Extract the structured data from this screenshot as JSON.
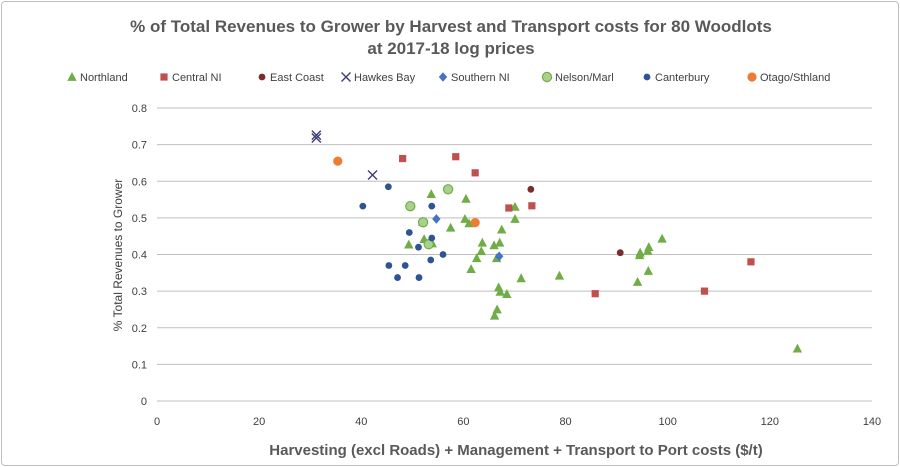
{
  "chart_data": {
    "type": "scatter",
    "title": "% of Total Revenues to Grower by Harvest and Transport costs for 80 Woodlots",
    "subtitle": "at 2017-18 log prices",
    "xlabel": "Harvesting (excl Roads) + Management + Transport to Port costs ($/t)",
    "ylabel": "% Total Revenues to Grower",
    "xlim": [
      0,
      140
    ],
    "ylim": [
      0,
      0.8
    ],
    "xticks": [
      "0",
      "20",
      "40",
      "60",
      "80",
      "100",
      "120",
      "140"
    ],
    "yticks": [
      "0",
      "0.1",
      "0.2",
      "0.3",
      "0.4",
      "0.5",
      "0.6",
      "0.7",
      "0.8"
    ],
    "grid": "horizontal",
    "legend_position": "top",
    "series": [
      {
        "name": "Northland",
        "marker": "triangle",
        "color": "#70ad47",
        "points": [
          [
            53.7,
            0.565
          ],
          [
            60.5,
            0.552
          ],
          [
            52.0,
            0.49
          ],
          [
            60.3,
            0.497
          ],
          [
            70.1,
            0.53
          ],
          [
            70.1,
            0.497
          ],
          [
            57.5,
            0.473
          ],
          [
            61.1,
            0.485
          ],
          [
            67.5,
            0.468
          ],
          [
            49.3,
            0.427
          ],
          [
            52.3,
            0.442
          ],
          [
            53.9,
            0.43
          ],
          [
            63.7,
            0.432
          ],
          [
            66.0,
            0.425
          ],
          [
            67.1,
            0.432
          ],
          [
            63.5,
            0.409
          ],
          [
            62.6,
            0.39
          ],
          [
            66.5,
            0.39
          ],
          [
            61.5,
            0.36
          ],
          [
            66.9,
            0.31
          ],
          [
            67.2,
            0.298
          ],
          [
            68.5,
            0.292
          ],
          [
            71.3,
            0.335
          ],
          [
            78.8,
            0.342
          ],
          [
            66.6,
            0.25
          ],
          [
            66.1,
            0.233
          ],
          [
            94.1,
            0.325
          ],
          [
            94.5,
            0.398
          ],
          [
            94.6,
            0.405
          ],
          [
            96.1,
            0.41
          ],
          [
            96.3,
            0.42
          ],
          [
            96.2,
            0.355
          ],
          [
            98.9,
            0.443
          ],
          [
            125.4,
            0.143
          ]
        ]
      },
      {
        "name": "Central NI",
        "marker": "square",
        "color": "#c0504d",
        "points": [
          [
            48.1,
            0.662
          ],
          [
            58.5,
            0.667
          ],
          [
            62.3,
            0.623
          ],
          [
            73.4,
            0.533
          ],
          [
            68.9,
            0.527
          ],
          [
            85.8,
            0.293
          ],
          [
            107.2,
            0.3
          ],
          [
            116.3,
            0.38
          ]
        ]
      },
      {
        "name": "East Coast",
        "marker": "circle",
        "color": "#7b2c2c",
        "points": [
          [
            73.2,
            0.578
          ],
          [
            90.7,
            0.405
          ]
        ]
      },
      {
        "name": "Hawkes Bay",
        "marker": "x",
        "color": "#3d3d7a",
        "points": [
          [
            31.2,
            0.726
          ],
          [
            31.2,
            0.718
          ],
          [
            42.2,
            0.617
          ]
        ]
      },
      {
        "name": "Southern NI",
        "marker": "diamond",
        "color": "#4472c4",
        "points": [
          [
            54.7,
            0.497
          ],
          [
            67.0,
            0.395
          ]
        ]
      },
      {
        "name": "Nelson/Marl",
        "marker": "circle",
        "color": "#a9d18e",
        "stroke": "#70ad47",
        "points": [
          [
            49.6,
            0.532
          ],
          [
            57.0,
            0.578
          ],
          [
            52.1,
            0.488
          ],
          [
            53.2,
            0.428
          ]
        ]
      },
      {
        "name": "Canterbury",
        "marker": "circle",
        "color": "#2f5496",
        "points": [
          [
            40.3,
            0.532
          ],
          [
            45.3,
            0.585
          ],
          [
            53.8,
            0.532
          ],
          [
            49.4,
            0.46
          ],
          [
            53.8,
            0.445
          ],
          [
            51.2,
            0.42
          ],
          [
            56.0,
            0.4
          ],
          [
            53.6,
            0.385
          ],
          [
            45.4,
            0.37
          ],
          [
            48.6,
            0.37
          ],
          [
            47.1,
            0.337
          ],
          [
            51.3,
            0.337
          ]
        ]
      },
      {
        "name": "Otago/Sthland",
        "marker": "circle",
        "color": "#ed7d31",
        "points": [
          [
            35.4,
            0.655
          ],
          [
            62.3,
            0.487
          ]
        ]
      }
    ]
  }
}
